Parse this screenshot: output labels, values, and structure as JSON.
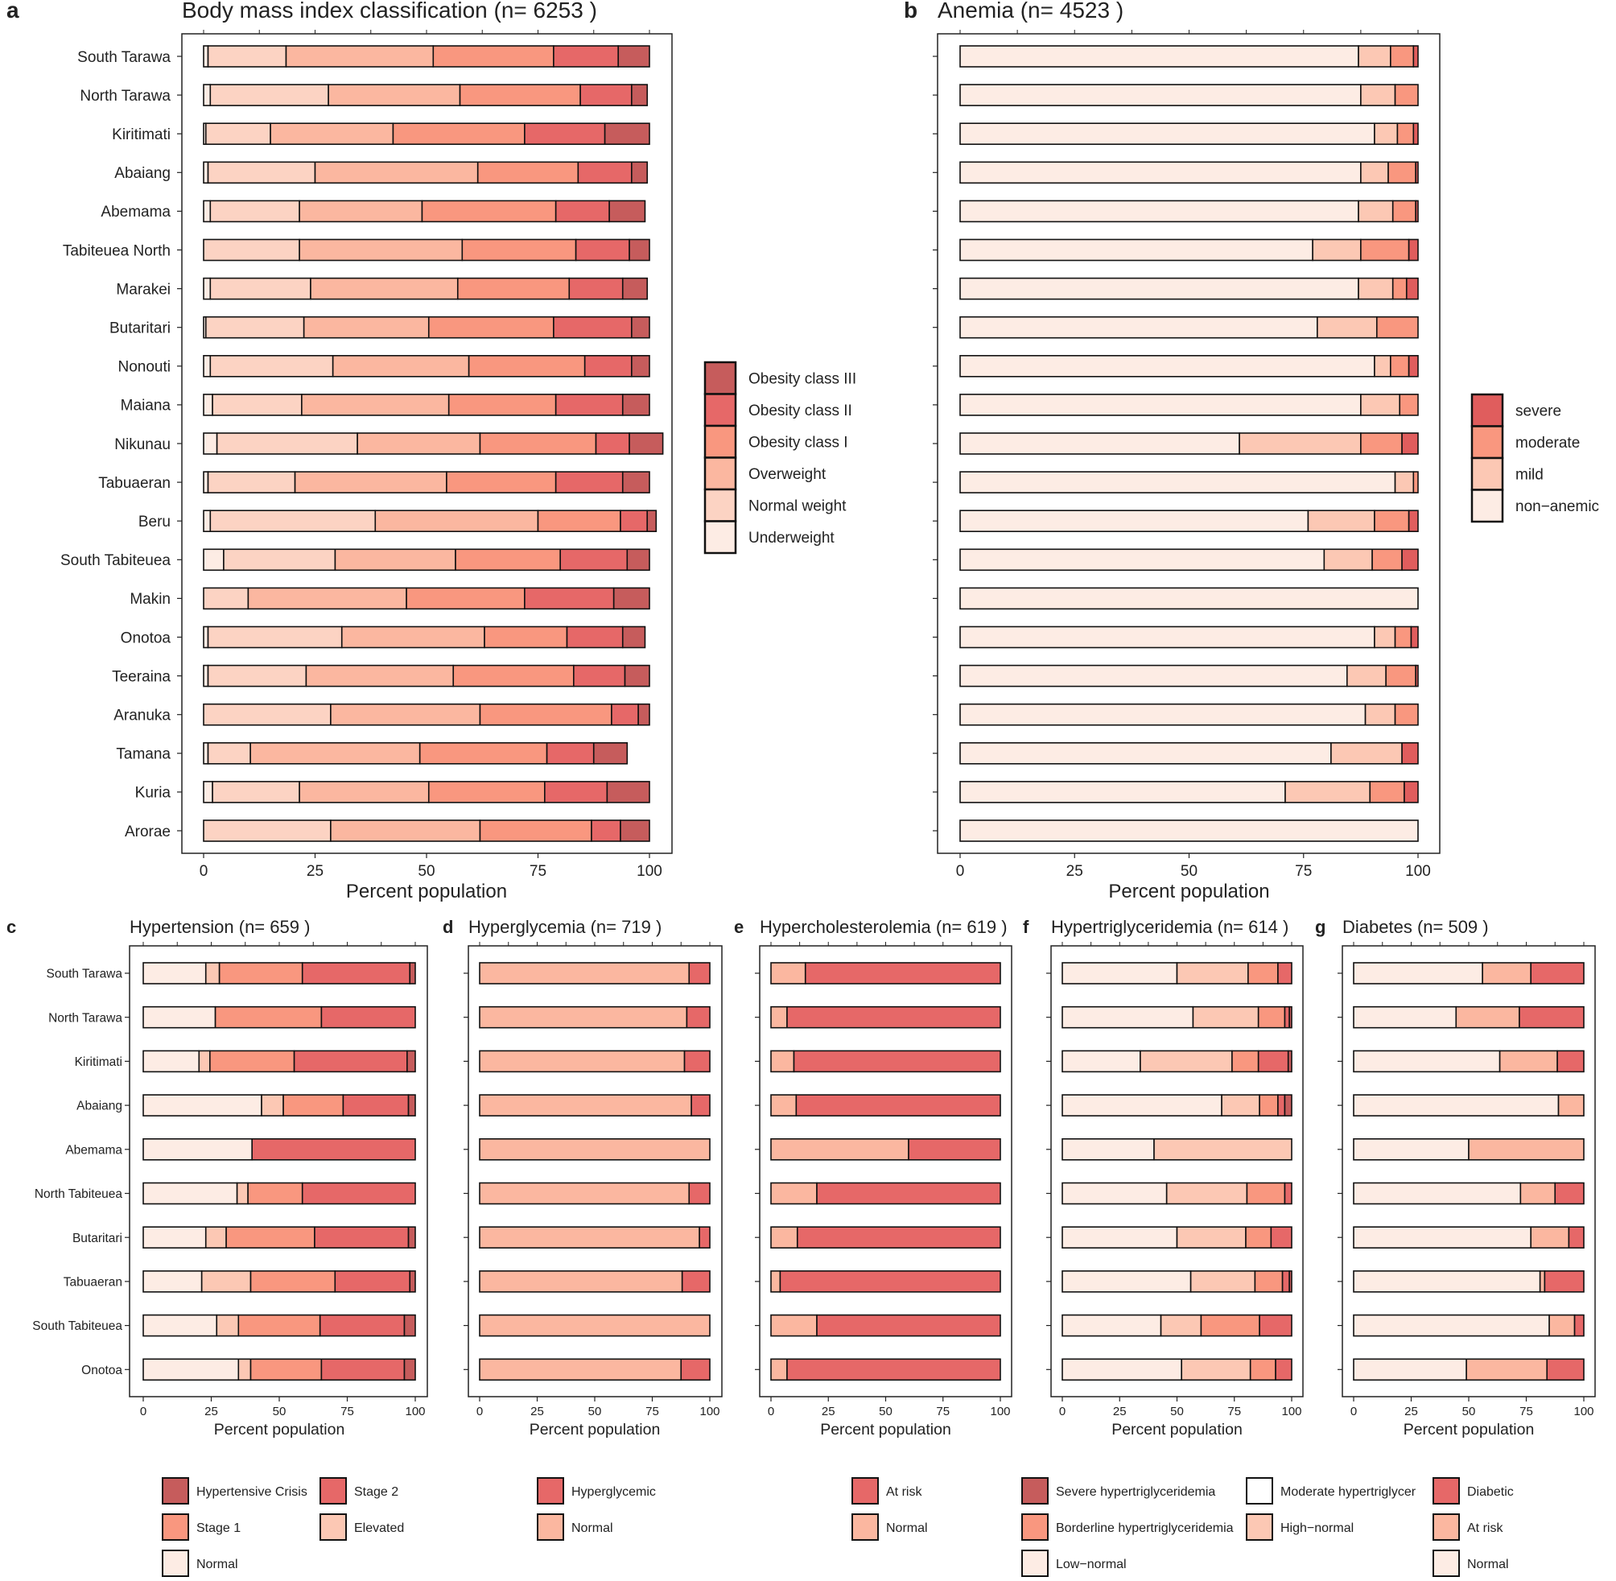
{
  "chart_data": [
    {
      "type": "bar",
      "stacked": true,
      "orientation": "horizontal",
      "panel": "a",
      "title": "Body mass index classification (n=  6253 )",
      "xlabel": "Percent population",
      "ylabel": "",
      "xlim": [
        0,
        100
      ],
      "xticks": [
        "0",
        "25",
        "50",
        "75",
        "100"
      ],
      "legend_title": "",
      "legend_position": "right",
      "categories": [
        "South Tarawa",
        "North Tarawa",
        "Kiritimati",
        "Abaiang",
        "Abemama",
        "Tabiteuea North",
        "Marakei",
        "Butaritari",
        "Nonouti",
        "Maiana",
        "Nikunau",
        "Tabuaeran",
        "Beru",
        "South Tabiteuea",
        "Makin",
        "Onotoa",
        "Teeraina",
        "Aranuka",
        "Tamana",
        "Kuria",
        "Arorae"
      ],
      "series": [
        {
          "name": "Underweight",
          "color": "#fdece4",
          "values": [
            1,
            1.5,
            0.5,
            1,
            1.5,
            0,
            1.5,
            0.5,
            1.5,
            2,
            3,
            1,
            1.5,
            4.5,
            0,
            1,
            1,
            0,
            1,
            2,
            0
          ]
        },
        {
          "name": "Normal weight",
          "color": "#fcd3c3",
          "values": [
            17.5,
            26.5,
            14.5,
            24,
            20,
            21.5,
            22.5,
            22,
            27.5,
            20,
            31.5,
            19.5,
            37,
            25,
            10,
            30,
            22,
            28.5,
            9.5,
            19.5,
            28.5
          ]
        },
        {
          "name": "Overweight",
          "color": "#fbb7a0",
          "values": [
            33,
            29.5,
            27.5,
            36.5,
            27.5,
            36.5,
            33,
            28,
            30.5,
            33,
            27.5,
            34,
            36.5,
            27,
            35.5,
            32,
            33,
            33.5,
            38,
            29,
            33.5
          ]
        },
        {
          "name": "Obesity class I",
          "color": "#f9977f",
          "values": [
            27,
            27,
            29.5,
            22.5,
            30,
            25.5,
            25,
            28,
            26,
            24,
            26,
            24.5,
            18.5,
            23.5,
            26.5,
            18.5,
            27,
            29.5,
            28.5,
            26,
            25
          ]
        },
        {
          "name": "Obesity class II",
          "color": "#e66868",
          "values": [
            14.5,
            11.5,
            18,
            12,
            12,
            12,
            12,
            17.5,
            10.5,
            15,
            7.5,
            15,
            6,
            15,
            20,
            12.5,
            11.5,
            6,
            10.5,
            14,
            6.5
          ]
        },
        {
          "name": "Obesity class III",
          "color": "#c65c5c",
          "values": [
            7,
            3.5,
            10,
            3.5,
            8,
            4.5,
            5.5,
            4,
            4,
            6,
            7.5,
            6,
            2,
            5,
            8,
            5,
            5.5,
            2.5,
            7.5,
            9.5,
            6.5
          ]
        }
      ]
    },
    {
      "type": "bar",
      "stacked": true,
      "orientation": "horizontal",
      "panel": "b",
      "title": "Anemia (n=  4523 )",
      "xlabel": "Percent population",
      "xlim": [
        0,
        100
      ],
      "xticks": [
        "0",
        "25",
        "50",
        "75",
        "100"
      ],
      "legend_position": "right",
      "categories": [
        "South Tarawa",
        "North Tarawa",
        "Kiritimati",
        "Abaiang",
        "Abemama",
        "Tabiteuea North",
        "Marakei",
        "Butaritari",
        "Nonouti",
        "Maiana",
        "Nikunau",
        "Tabuaeran",
        "Beru",
        "South Tabiteuea",
        "Makin",
        "Onotoa",
        "Teeraina",
        "Aranuka",
        "Tamana",
        "Kuria",
        "Arorae"
      ],
      "series": [
        {
          "name": "non−anemic",
          "color": "#fdece4",
          "values": [
            87,
            87.5,
            90.5,
            87.5,
            87,
            77,
            87,
            78,
            90.5,
            87.5,
            61,
            95,
            76,
            79.5,
            100,
            90.5,
            84.5,
            88.5,
            81,
            71,
            100
          ]
        },
        {
          "name": "mild",
          "color": "#fcc8b4",
          "values": [
            7,
            7.5,
            5,
            6,
            7.5,
            10.5,
            7.5,
            13,
            3.5,
            8.5,
            26.5,
            4,
            14.5,
            10.5,
            0,
            4.5,
            8.5,
            6.5,
            15.5,
            18.5,
            0
          ]
        },
        {
          "name": "moderate",
          "color": "#f9977f",
          "values": [
            5,
            5,
            3.5,
            6,
            5,
            10.5,
            3,
            9,
            4,
            4,
            9,
            1,
            7.5,
            6.5,
            0,
            3.5,
            6.5,
            5,
            0,
            7.5,
            0
          ]
        },
        {
          "name": "severe",
          "color": "#e05d5d",
          "values": [
            1,
            0,
            1,
            0.5,
            0.5,
            2,
            2.5,
            0,
            2,
            0,
            3.5,
            0,
            2,
            3.5,
            0,
            1.5,
            0.5,
            0,
            3.5,
            3,
            0
          ]
        }
      ]
    },
    {
      "type": "bar",
      "stacked": true,
      "orientation": "horizontal",
      "panel": "c",
      "title": "Hypertension (n=  659 )",
      "xlabel": "Percent population",
      "xlim": [
        0,
        100
      ],
      "xticks": [
        "0",
        "25",
        "50",
        "75",
        "100"
      ],
      "legend_position": "bottom",
      "categories": [
        "South Tarawa",
        "North Tarawa",
        "Kiritimati",
        "Abaiang",
        "Abemama",
        "North Tabiteuea",
        "Butaritari",
        "Tabuaeran",
        "South Tabiteuea",
        "Onotoa"
      ],
      "series": [
        {
          "name": "Normal",
          "color": "#fdece4",
          "values": [
            23,
            26.5,
            20.5,
            43.5,
            40,
            34.5,
            23,
            21.5,
            27,
            35
          ]
        },
        {
          "name": "Elevated",
          "color": "#fcc8b4",
          "values": [
            5,
            0,
            4,
            8,
            0,
            4,
            7.5,
            18,
            8,
            4.5
          ]
        },
        {
          "name": "Stage 1",
          "color": "#f9977f",
          "values": [
            30.5,
            39,
            31,
            22,
            0,
            20,
            32.5,
            31,
            30,
            26
          ]
        },
        {
          "name": "Stage 2",
          "color": "#e66868",
          "values": [
            39.5,
            34.5,
            41.5,
            24,
            60,
            41.5,
            34.5,
            27.5,
            31,
            30.5
          ]
        },
        {
          "name": "Hypertensive Crisis",
          "color": "#c65c5c",
          "values": [
            2,
            0,
            3,
            2.5,
            0,
            0,
            2.5,
            2,
            4,
            4
          ]
        }
      ]
    },
    {
      "type": "bar",
      "stacked": true,
      "orientation": "horizontal",
      "panel": "d",
      "title": "Hyperglycemia (n=  719 )",
      "xlabel": "Percent population",
      "xlim": [
        0,
        100
      ],
      "xticks": [
        "0",
        "25",
        "50",
        "75",
        "100"
      ],
      "legend_position": "bottom",
      "categories": [
        "South Tarawa",
        "North Tarawa",
        "Kiritimati",
        "Abaiang",
        "Abemama",
        "North Tabiteuea",
        "Butaritari",
        "Tabuaeran",
        "South Tabiteuea",
        "Onotoa"
      ],
      "series": [
        {
          "name": "Normal",
          "color": "#fbb7a0",
          "values": [
            91,
            90,
            89,
            92,
            100,
            91,
            95.5,
            88,
            100,
            87.5
          ]
        },
        {
          "name": "Hyperglycemic",
          "color": "#e66868",
          "values": [
            9,
            10,
            11,
            8,
            0,
            9,
            4.5,
            12,
            0,
            12.5
          ]
        }
      ]
    },
    {
      "type": "bar",
      "stacked": true,
      "orientation": "horizontal",
      "panel": "e",
      "title": "Hypercholesterolemia (n=  619 )",
      "xlabel": "Percent population",
      "xlim": [
        0,
        100
      ],
      "xticks": [
        "0",
        "25",
        "50",
        "75",
        "100"
      ],
      "legend_position": "bottom",
      "categories": [
        "South Tarawa",
        "North Tarawa",
        "Kiritimati",
        "Abaiang",
        "Abemama",
        "North Tabiteuea",
        "Butaritari",
        "Tabuaeran",
        "South Tabiteuea",
        "Onotoa"
      ],
      "series": [
        {
          "name": "Normal",
          "color": "#fbb7a0",
          "values": [
            15,
            7,
            10,
            11,
            60,
            20,
            11.5,
            4,
            20,
            7
          ]
        },
        {
          "name": "At risk",
          "color": "#e66868",
          "values": [
            85,
            93,
            90,
            89,
            40,
            80,
            88.5,
            96,
            80,
            93
          ]
        }
      ]
    },
    {
      "type": "bar",
      "stacked": true,
      "orientation": "horizontal",
      "panel": "f",
      "title": "Hypertriglyceridemia (n=  614 )",
      "xlabel": "Percent population",
      "xlim": [
        0,
        100
      ],
      "xticks": [
        "0",
        "25",
        "50",
        "75",
        "100"
      ],
      "legend_position": "bottom",
      "categories": [
        "South Tarawa",
        "North Tarawa",
        "Kiritimati",
        "Abaiang",
        "Abemama",
        "North Tabiteuea",
        "Butaritari",
        "Tabuaeran",
        "South Tabiteuea",
        "Onotoa"
      ],
      "series": [
        {
          "name": "Low−normal",
          "color": "#fdece4",
          "values": [
            50,
            57,
            34,
            69.5,
            40,
            45.5,
            50,
            56,
            43,
            52
          ]
        },
        {
          "name": "High−normal",
          "color": "#fcc8b4",
          "values": [
            31,
            28.5,
            40,
            16.5,
            60,
            35,
            30,
            28,
            17.5,
            30
          ]
        },
        {
          "name": "Borderline hypertriglyceridemia",
          "color": "#f9977f",
          "values": [
            13,
            11.5,
            11.5,
            8,
            0,
            16.5,
            11,
            12,
            25.5,
            11
          ]
        },
        {
          "name": "Moderate hypertriglyceridemia",
          "color": "#e66868",
          "values": [
            6,
            2,
            13,
            3,
            0,
            3,
            9,
            3,
            14,
            7
          ]
        },
        {
          "name": "Severe hypertriglyceridemia",
          "color": "#c65c5c",
          "values": [
            0,
            1,
            1.5,
            3,
            0,
            0,
            0,
            1,
            0,
            0
          ]
        }
      ]
    },
    {
      "type": "bar",
      "stacked": true,
      "orientation": "horizontal",
      "panel": "g",
      "title": "Diabetes (n=  509 )",
      "xlabel": "Percent population",
      "xlim": [
        0,
        100
      ],
      "xticks": [
        "0",
        "25",
        "50",
        "75",
        "100"
      ],
      "legend_position": "bottom",
      "categories": [
        "South Tarawa",
        "North Tarawa",
        "Kiritimati",
        "Abaiang",
        "Abemama",
        "North Tabiteuea",
        "Butaritari",
        "Tabuaeran",
        "South Tabiteuea",
        "Onotoa"
      ],
      "series": [
        {
          "name": "Normal",
          "color": "#fdece4",
          "values": [
            56,
            44.5,
            63.5,
            89,
            50,
            72.5,
            77,
            81,
            85,
            49
          ]
        },
        {
          "name": "At risk",
          "color": "#fbb7a0",
          "values": [
            21,
            27.5,
            25,
            11,
            50,
            15,
            16.5,
            2,
            11,
            35
          ]
        },
        {
          "name": "Diabetic",
          "color": "#e66868",
          "values": [
            23,
            28,
            11.5,
            0,
            0,
            12.5,
            6.5,
            17,
            4,
            16
          ]
        }
      ]
    }
  ],
  "legends": {
    "a": [
      "Obesity class III",
      "Obesity class II",
      "Obesity class I",
      "Overweight",
      "Normal weight",
      "Underweight"
    ],
    "b": [
      "severe",
      "moderate",
      "mild",
      "non−anemic"
    ],
    "c": [
      "Hypertensive Crisis",
      "Stage 2",
      "Stage 1",
      "Elevated",
      "Normal"
    ],
    "d": [
      "Hyperglycemic",
      "Normal"
    ],
    "e": [
      "At risk",
      "Normal"
    ],
    "f": [
      "Severe hypertriglyceridemia",
      "Moderate hypertriglycer",
      "Borderline hypertriglyceridemia",
      "High−normal",
      "Low−normal"
    ],
    "g": [
      "Diabetic",
      "At risk",
      "Normal"
    ]
  },
  "colors": {
    "axis": "#222222",
    "panel_border": "#222222",
    "bar_outline": "#111111",
    "background": "#ffffff"
  }
}
